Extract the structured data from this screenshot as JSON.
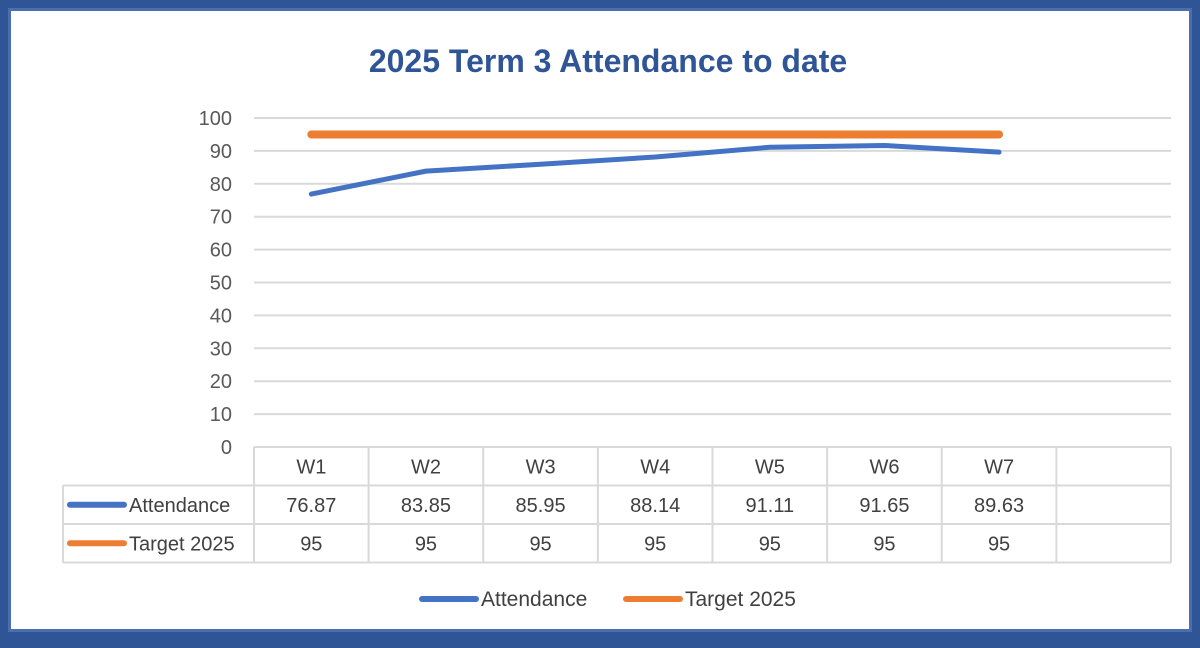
{
  "chart_data": {
    "type": "line",
    "title": "2025 Term 3 Attendance to date",
    "categories": [
      "W1",
      "W2",
      "W3",
      "W4",
      "W5",
      "W6",
      "W7"
    ],
    "series": [
      {
        "name": "Attendance",
        "values": [
          76.87,
          83.85,
          85.95,
          88.14,
          91.11,
          91.65,
          89.63
        ],
        "color": "#4472c4"
      },
      {
        "name": "Target 2025",
        "values": [
          95,
          95,
          95,
          95,
          95,
          95,
          95
        ],
        "color": "#ed7d31"
      }
    ],
    "ylim": [
      0,
      100
    ],
    "yticks": [
      0,
      10,
      20,
      30,
      40,
      50,
      60,
      70,
      80,
      90,
      100
    ],
    "grid": true,
    "data_table": true,
    "legend": "bottom",
    "colors": {
      "title": "#2f5597",
      "frame": "#2f5597",
      "grid": "#d9d9d9"
    }
  }
}
